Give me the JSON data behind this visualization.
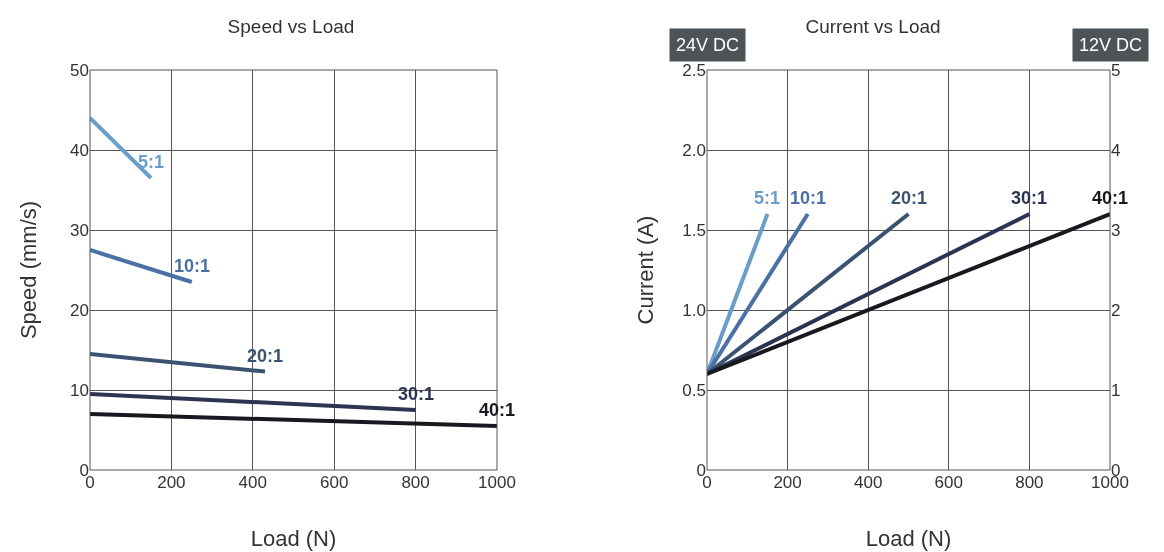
{
  "chart_data": [
    {
      "type": "line",
      "title": "Speed vs Load",
      "xlabel": "Load (N)",
      "ylabel": "Speed (mm/s)",
      "xlim": [
        0,
        1000
      ],
      "xticks": [
        0,
        200,
        400,
        600,
        800,
        1000
      ],
      "ylim": [
        0,
        50
      ],
      "yticks": [
        0,
        10,
        20,
        30,
        40,
        50
      ],
      "grid": true,
      "series": [
        {
          "name": "5:1",
          "color": "#6b9dc9",
          "x": [
            0,
            150
          ],
          "values": [
            44,
            36.5
          ]
        },
        {
          "name": "10:1",
          "color": "#4a70a6",
          "x": [
            0,
            250
          ],
          "values": [
            27.5,
            23.5
          ]
        },
        {
          "name": "20:1",
          "color": "#3c5271",
          "x": [
            0,
            430
          ],
          "values": [
            14.5,
            12.3
          ]
        },
        {
          "name": "30:1",
          "color": "#2c3452",
          "x": [
            0,
            800
          ],
          "values": [
            9.5,
            7.5
          ]
        },
        {
          "name": "40:1",
          "color": "#18181f",
          "x": [
            0,
            1000
          ],
          "values": [
            7,
            5.5
          ]
        }
      ]
    },
    {
      "type": "line",
      "title": "Current vs Load",
      "xlabel": "Load (N)",
      "ylabel": "Current (A)",
      "xlim": [
        0,
        1000
      ],
      "xticks": [
        0,
        200,
        400,
        600,
        800,
        1000
      ],
      "ylim": [
        0,
        2.5
      ],
      "yticks": [
        0,
        0.5,
        {
          "value": 1,
          "label": "1.0"
        },
        1.5,
        {
          "value": 2,
          "label": "2.0"
        },
        2.5
      ],
      "y2lim": [
        0,
        5
      ],
      "y2ticks": [
        0,
        1,
        2,
        3,
        4,
        5
      ],
      "grid": true,
      "annotations": [
        "24V DC",
        "12V DC"
      ],
      "series": [
        {
          "name": "5:1",
          "color": "#6b9dc9",
          "x": [
            0,
            150
          ],
          "values": [
            0.6,
            1.6
          ]
        },
        {
          "name": "10:1",
          "color": "#4a70a6",
          "x": [
            0,
            250
          ],
          "values": [
            0.6,
            1.6
          ]
        },
        {
          "name": "20:1",
          "color": "#3c5271",
          "x": [
            0,
            500
          ],
          "values": [
            0.6,
            1.6
          ]
        },
        {
          "name": "30:1",
          "color": "#2c3452",
          "x": [
            0,
            800
          ],
          "values": [
            0.6,
            1.6
          ]
        },
        {
          "name": "40:1",
          "color": "#18181f",
          "x": [
            0,
            1000
          ],
          "values": [
            0.6,
            1.6
          ]
        }
      ]
    }
  ]
}
